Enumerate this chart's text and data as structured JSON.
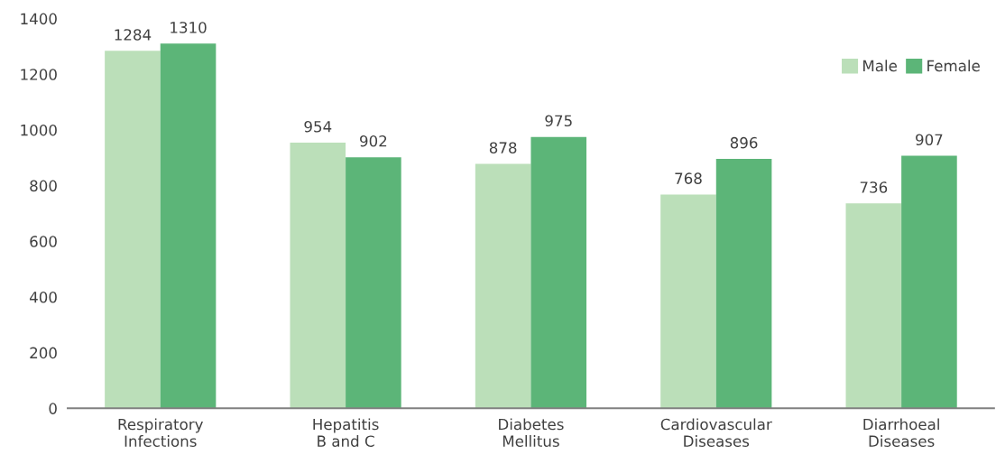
{
  "chart_data": {
    "type": "bar",
    "categories": [
      "Respiratory\nInfections",
      "Hepatitis\nB and C",
      "Diabetes\nMellitus",
      "Cardiovascular\nDiseases",
      "Diarrhoeal\nDiseases"
    ],
    "series": [
      {
        "name": "Male",
        "color": "#bbdfb9",
        "values": [
          1284,
          954,
          878,
          768,
          736
        ]
      },
      {
        "name": "Female",
        "color": "#5cb578",
        "values": [
          1310,
          902,
          975,
          896,
          907
        ]
      }
    ],
    "ylim": [
      0,
      1400
    ],
    "yticks": [
      0,
      200,
      400,
      600,
      800,
      1000,
      1200,
      1400
    ],
    "data_labels": true,
    "legend": "top right",
    "grid": false
  }
}
